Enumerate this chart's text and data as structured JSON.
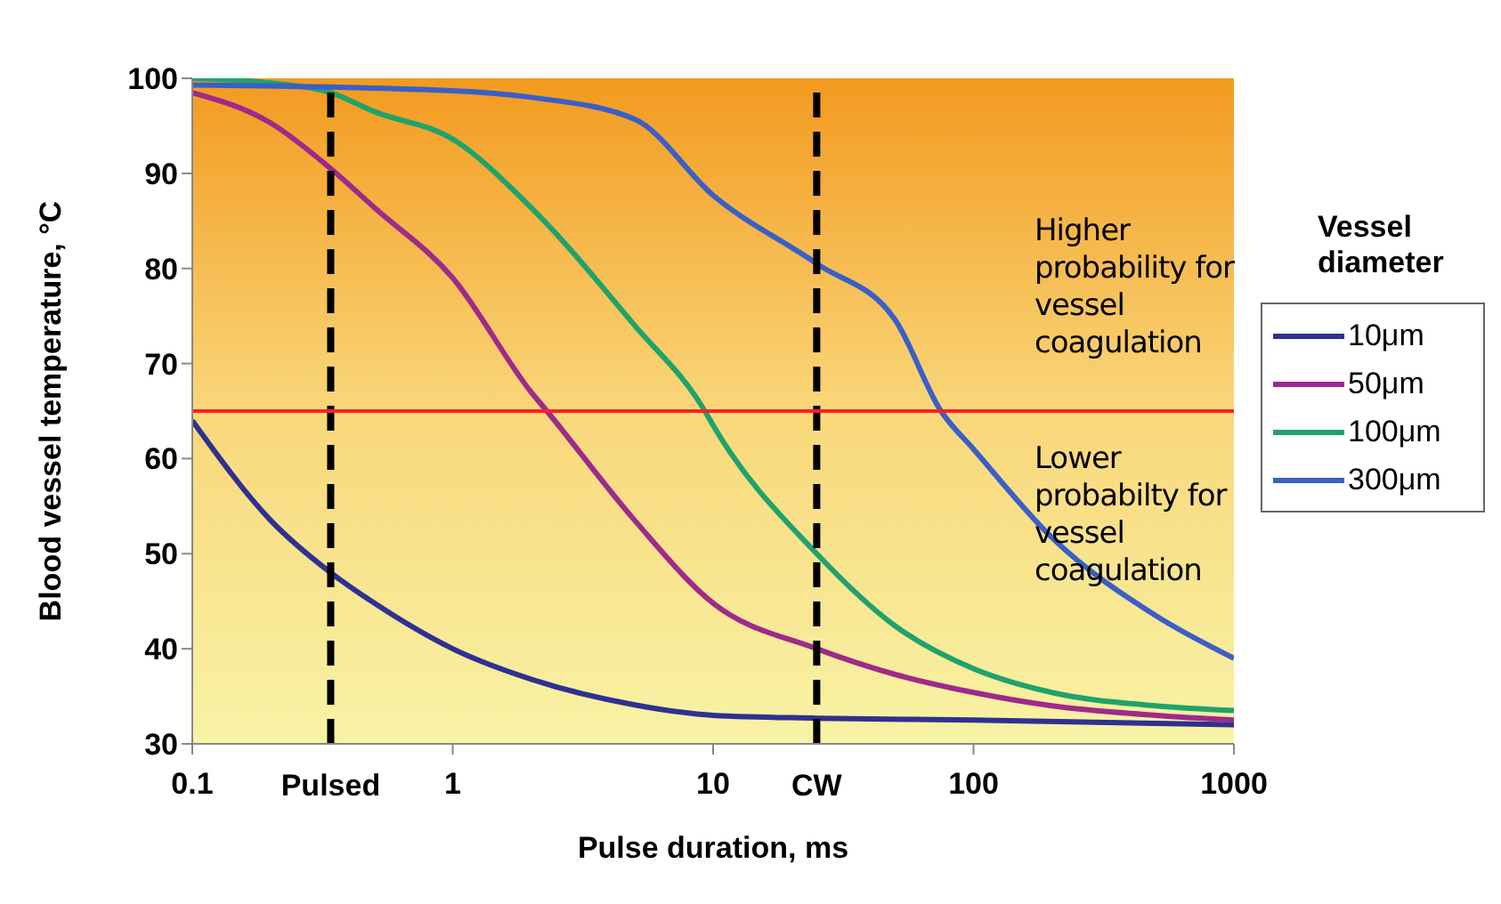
{
  "chart_data": {
    "type": "line",
    "xlabel": "Pulse duration, ms",
    "ylabel": "Blood vessel temperature, °C",
    "legend_title": "Vessel diameter",
    "legend": "right",
    "log": "x",
    "grid": false,
    "marker": "none",
    "line_style": "solid",
    "xlim": [
      0.1,
      1000
    ],
    "xticks": [
      0.1,
      1,
      10,
      100,
      1000
    ],
    "ylim": [
      30,
      100
    ],
    "yticks": [
      30,
      40,
      50,
      60,
      70,
      80,
      90,
      100
    ],
    "series": [
      {
        "name": "10μm",
        "color": "#2e3192",
        "x": [
          0.1,
          0.2,
          0.34,
          0.5,
          1,
          2,
          5,
          10,
          25,
          100,
          1000
        ],
        "values": [
          64,
          53.5,
          48,
          44.8,
          40,
          36.8,
          34.1,
          33,
          32.7,
          32.5,
          32
        ]
      },
      {
        "name": "50μm",
        "color": "#9e2a8a",
        "x": [
          0.1,
          0.2,
          0.34,
          0.5,
          1,
          2,
          2.3,
          5,
          10,
          25,
          50,
          100,
          200,
          500,
          1000
        ],
        "values": [
          98.5,
          95.3,
          90.5,
          86.4,
          79,
          67,
          65,
          53.5,
          44.8,
          40,
          37.3,
          35.4,
          34,
          33,
          32.5
        ]
      },
      {
        "name": "100μm",
        "color": "#1fa36b",
        "x": [
          0.1,
          0.2,
          0.34,
          0.5,
          1,
          2,
          5,
          9.3,
          10,
          25,
          50,
          100,
          200,
          500,
          1000
        ],
        "values": [
          100,
          99.5,
          98.5,
          96.5,
          93.6,
          86.4,
          74,
          65,
          63.5,
          50,
          42.4,
          37.9,
          35.4,
          34,
          33.5
        ]
      },
      {
        "name": "300μm",
        "color": "#3a5fc8",
        "x": [
          0.1,
          1,
          2,
          5,
          10,
          25,
          50,
          75,
          100,
          200,
          500,
          1000
        ],
        "values": [
          99.3,
          98.7,
          98,
          95.7,
          87.7,
          80.5,
          74.6,
          65,
          61,
          51.7,
          43.5,
          39
        ]
      }
    ],
    "ref_lines": [
      {
        "axis": "x",
        "value": 0.34,
        "label": "Pulsed",
        "color": "#000000",
        "line_style": "dashed"
      },
      {
        "axis": "x",
        "value": 25,
        "label": "CW",
        "color": "#000000",
        "line_style": "dashed"
      },
      {
        "axis": "y",
        "value": 65,
        "color": "#ff2020",
        "line_style": "solid"
      }
    ],
    "annotations": [
      "Higher probability for vessel coagulation",
      "Lower probabilty for vessel coagulation"
    ]
  }
}
